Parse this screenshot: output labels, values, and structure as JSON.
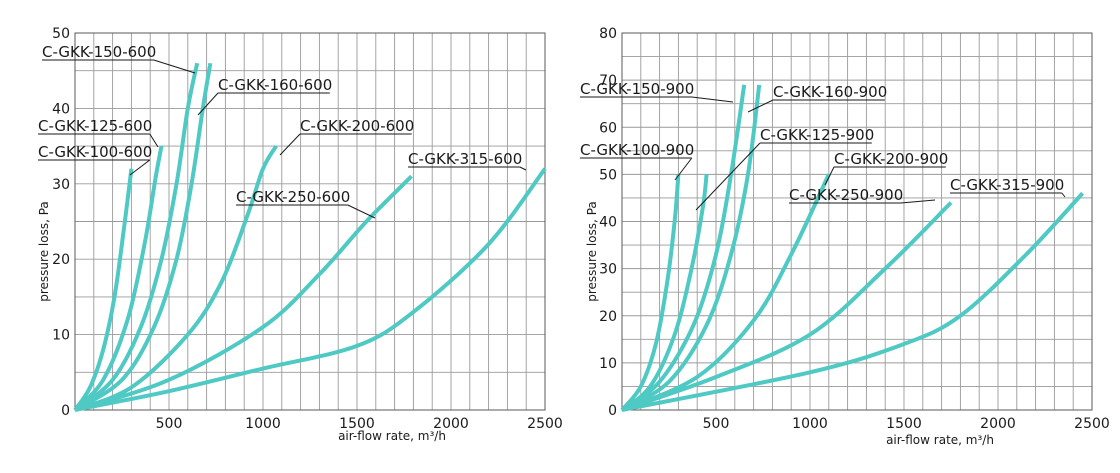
{
  "style": {
    "curve_color": "#4ec9c3"
  },
  "chart_data": [
    {
      "type": "line",
      "xlabel": "air-flow rate, m³/h",
      "ylabel": "pressure loss, Pa",
      "xlim": [
        0,
        2500
      ],
      "ylim": [
        0,
        50
      ],
      "xticks": [
        500,
        1000,
        1500,
        2000,
        2500
      ],
      "yticks": [
        0,
        10,
        20,
        30,
        40,
        50
      ],
      "grid": true,
      "series": [
        {
          "name": "C-GKK-100-600",
          "points": [
            [
              0,
              0
            ],
            [
              80,
              3
            ],
            [
              150,
              8
            ],
            [
              210,
              15
            ],
            [
              260,
              24
            ],
            [
              300,
              32
            ]
          ]
        },
        {
          "name": "C-GKK-125-600",
          "points": [
            [
              0,
              0
            ],
            [
              150,
              4
            ],
            [
              280,
              12
            ],
            [
              370,
              22
            ],
            [
              430,
              31
            ],
            [
              460,
              35
            ]
          ]
        },
        {
          "name": "C-GKK-150-600",
          "points": [
            [
              0,
              0
            ],
            [
              200,
              4
            ],
            [
              350,
              11
            ],
            [
              460,
              20
            ],
            [
              540,
              30
            ],
            [
              600,
              40
            ],
            [
              650,
              46
            ]
          ]
        },
        {
          "name": "C-GKK-160-600",
          "points": [
            [
              0,
              0
            ],
            [
              250,
              4
            ],
            [
              420,
              11
            ],
            [
              540,
              20
            ],
            [
              620,
              30
            ],
            [
              680,
              40
            ],
            [
              720,
              46
            ]
          ]
        },
        {
          "name": "C-GKK-200-600",
          "points": [
            [
              0,
              0
            ],
            [
              300,
              3
            ],
            [
              600,
              10
            ],
            [
              780,
              17
            ],
            [
              920,
              26
            ],
            [
              1000,
              32
            ],
            [
              1070,
              35
            ]
          ]
        },
        {
          "name": "C-GKK-250-600",
          "points": [
            [
              0,
              0
            ],
            [
              500,
              4
            ],
            [
              1000,
              11
            ],
            [
              1300,
              18
            ],
            [
              1550,
              25
            ],
            [
              1790,
              31
            ]
          ]
        },
        {
          "name": "C-GKK-315-600",
          "points": [
            [
              0,
              0
            ],
            [
              500,
              2.5
            ],
            [
              1000,
              5.5
            ],
            [
              1500,
              8.5
            ],
            [
              1800,
              13
            ],
            [
              2200,
              22
            ],
            [
              2500,
              32
            ]
          ]
        }
      ],
      "labels": [
        {
          "series": "C-GKK-150-600",
          "text": "C-GKK-150-600"
        },
        {
          "series": "C-GKK-160-600",
          "text": "C-GKK-160-600"
        },
        {
          "series": "C-GKK-125-600",
          "text": "C-GKK-125-600"
        },
        {
          "series": "C-GKK-100-600",
          "text": "C-GKK-100-600"
        },
        {
          "series": "C-GKK-200-600",
          "text": "C-GKK-200-600"
        },
        {
          "series": "C-GKK-315-600",
          "text": "C-GKK-315-600"
        },
        {
          "series": "C-GKK-250-600",
          "text": "C-GKK-250-600"
        }
      ]
    },
    {
      "type": "line",
      "xlabel": "air-flow rate, m³/h",
      "ylabel": "pressure loss, Pa",
      "xlim": [
        0,
        2500
      ],
      "ylim": [
        0,
        80
      ],
      "xticks": [
        500,
        1000,
        1500,
        2000,
        2500
      ],
      "yticks": [
        0,
        10,
        20,
        30,
        40,
        50,
        60,
        70,
        80
      ],
      "grid": true,
      "series": [
        {
          "name": "C-GKK-100-900",
          "points": [
            [
              0,
              0
            ],
            [
              100,
              5
            ],
            [
              180,
              14
            ],
            [
              240,
              27
            ],
            [
              280,
              40
            ],
            [
              300,
              50
            ]
          ]
        },
        {
          "name": "C-GKK-125-900",
          "points": [
            [
              0,
              0
            ],
            [
              150,
              5
            ],
            [
              280,
              16
            ],
            [
              370,
              30
            ],
            [
              430,
              43
            ],
            [
              450,
              50
            ]
          ]
        },
        {
          "name": "C-GKK-150-900",
          "points": [
            [
              0,
              0
            ],
            [
              200,
              6
            ],
            [
              380,
              18
            ],
            [
              500,
              33
            ],
            [
              580,
              50
            ],
            [
              650,
              69
            ]
          ]
        },
        {
          "name": "C-GKK-160-900",
          "points": [
            [
              0,
              0
            ],
            [
              250,
              6
            ],
            [
              450,
              18
            ],
            [
              580,
              33
            ],
            [
              670,
              50
            ],
            [
              730,
              69
            ]
          ]
        },
        {
          "name": "C-GKK-200-900",
          "points": [
            [
              0,
              0
            ],
            [
              400,
              7
            ],
            [
              700,
              19
            ],
            [
              900,
              33
            ],
            [
              1100,
              50
            ]
          ]
        },
        {
          "name": "C-GKK-250-900",
          "points": [
            [
              0,
              0
            ],
            [
              500,
              7
            ],
            [
              1000,
              16
            ],
            [
              1400,
              30
            ],
            [
              1750,
              44
            ]
          ]
        },
        {
          "name": "C-GKK-315-900",
          "points": [
            [
              0,
              0
            ],
            [
              1000,
              8
            ],
            [
              1500,
              14
            ],
            [
              1800,
              20
            ],
            [
              2150,
              33
            ],
            [
              2450,
              46
            ]
          ]
        }
      ],
      "labels": [
        {
          "series": "C-GKK-150-900",
          "text": "C-GKK-150-900"
        },
        {
          "series": "C-GKK-160-900",
          "text": "C-GKK-160-900"
        },
        {
          "series": "C-GKK-125-900",
          "text": "C-GKK-125-900"
        },
        {
          "series": "C-GKK-100-900",
          "text": "C-GKK-100-900"
        },
        {
          "series": "C-GKK-200-900",
          "text": "C-GKK-200-900"
        },
        {
          "series": "C-GKK-250-900",
          "text": "C-GKK-250-900"
        },
        {
          "series": "C-GKK-315-900",
          "text": "C-GKK-315-900"
        }
      ]
    }
  ]
}
